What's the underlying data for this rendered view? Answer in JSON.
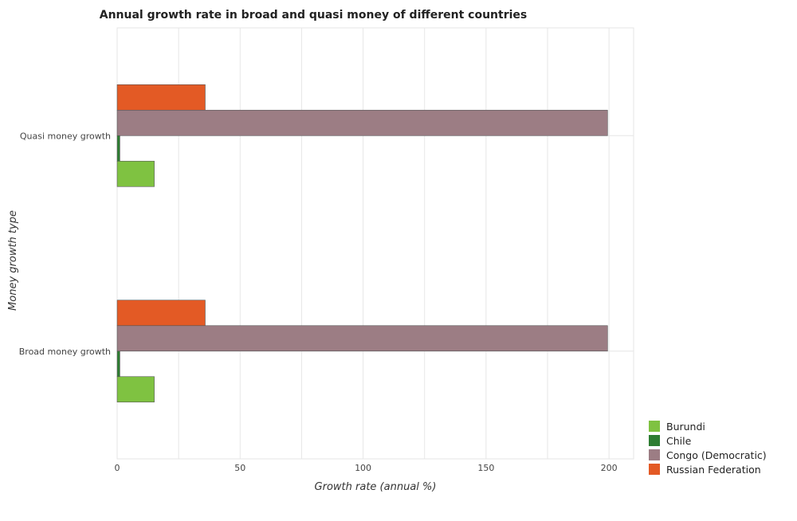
{
  "chart_data": {
    "type": "bar",
    "orientation": "horizontal",
    "title": "Annual growth rate in broad and quasi money of different countries",
    "xlabel": "Growth rate (annual %)",
    "ylabel": "Money growth type",
    "categories": [
      "Quasi money growth",
      "Broad money growth"
    ],
    "x_ticks": [
      0,
      50,
      100,
      150,
      200
    ],
    "xlim": [
      0,
      210
    ],
    "grid": true,
    "legend_position": "bottom-right",
    "series": [
      {
        "name": "Burundi",
        "color": "#7fc241",
        "values": [
          15.1,
          15.1
        ]
      },
      {
        "name": "Chile",
        "color": "#2e7d32",
        "values": [
          1.1,
          1.1
        ]
      },
      {
        "name": "Congo (Democratic)",
        "color": "#9c7d84",
        "values": [
          199.4,
          199.4
        ]
      },
      {
        "name": "Russian Federation",
        "color": "#e35a25",
        "values": [
          35.8,
          35.8
        ]
      }
    ]
  }
}
